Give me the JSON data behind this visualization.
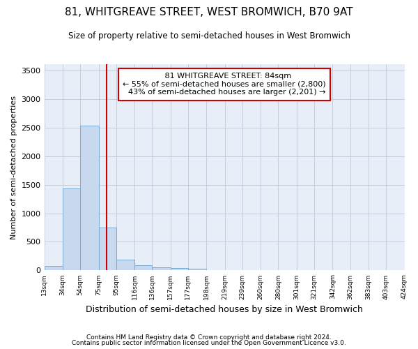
{
  "title": "81, WHITGREAVE STREET, WEST BROMWICH, B70 9AT",
  "subtitle": "Size of property relative to semi-detached houses in West Bromwich",
  "xlabel": "Distribution of semi-detached houses by size in West Bromwich",
  "ylabel": "Number of semi-detached properties",
  "property_label": "81 WHITGREAVE STREET: 84sqm",
  "pct_smaller": 55,
  "n_smaller": 2800,
  "pct_larger": 43,
  "n_larger": 2201,
  "bin_edges": [
    13,
    34,
    54,
    75,
    95,
    116,
    136,
    157,
    177,
    198,
    219,
    239,
    260,
    280,
    301,
    321,
    342,
    362,
    383,
    403,
    424
  ],
  "bin_labels": [
    "13sqm",
    "34sqm",
    "54sqm",
    "75sqm",
    "95sqm",
    "116sqm",
    "136sqm",
    "157sqm",
    "177sqm",
    "198sqm",
    "219sqm",
    "239sqm",
    "260sqm",
    "280sqm",
    "301sqm",
    "321sqm",
    "342sqm",
    "362sqm",
    "383sqm",
    "403sqm",
    "424sqm"
  ],
  "bar_heights": [
    75,
    1430,
    2530,
    750,
    185,
    85,
    55,
    40,
    35,
    0,
    0,
    0,
    0,
    0,
    0,
    0,
    0,
    0,
    0,
    0
  ],
  "bar_color": "#c8d8ee",
  "bar_edge_color": "#7aaad0",
  "vline_color": "#cc0000",
  "vline_x": 84,
  "ylim": [
    0,
    3600
  ],
  "yticks": [
    0,
    500,
    1000,
    1500,
    2000,
    2500,
    3000,
    3500
  ],
  "annotation_box_color": "#ffffff",
  "annotation_box_edge": "#cc0000",
  "bg_color": "#e8eef8",
  "grid_color": "#c0c8d8",
  "footer_line1": "Contains HM Land Registry data © Crown copyright and database right 2024.",
  "footer_line2": "Contains public sector information licensed under the Open Government Licence v3.0."
}
